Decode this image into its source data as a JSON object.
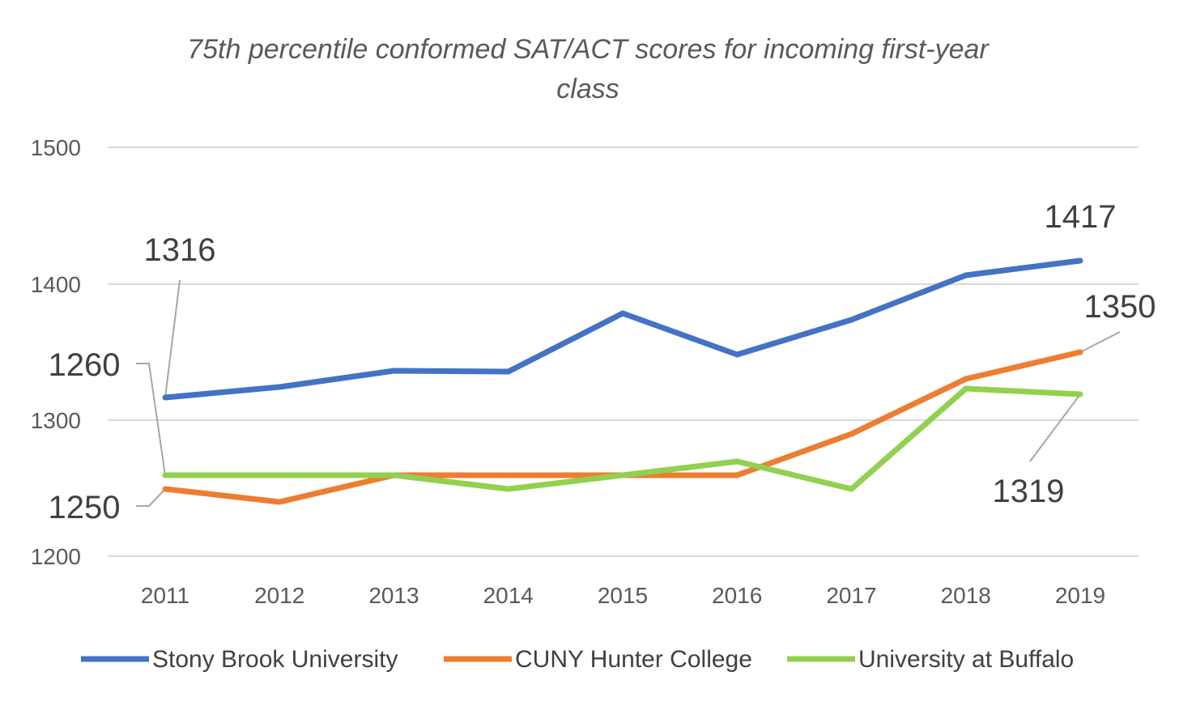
{
  "chart_data": {
    "type": "line",
    "title_line1": "75th percentile conformed SAT/ACT scores for incoming first-year",
    "title_line2": "class",
    "categories": [
      "2011",
      "2012",
      "2013",
      "2014",
      "2015",
      "2016",
      "2017",
      "2018",
      "2019"
    ],
    "y_tick_labels": [
      "1500",
      "1400",
      "1300",
      "1200"
    ],
    "series": [
      {
        "name": "Stony Brook University",
        "color": "#4472C4",
        "values": [
          1316,
          1324,
          1336,
          1335,
          1377,
          1346,
          1372,
          1406,
          1417
        ]
      },
      {
        "name": "CUNY Hunter College",
        "color": "#ED7D31",
        "values": [
          1250,
          1240,
          1260,
          1260,
          1260,
          1260,
          1290,
          1330,
          1350
        ]
      },
      {
        "name": "University at Buffalo",
        "color": "#92D050",
        "values": [
          1260,
          1260,
          1260,
          1250,
          1260,
          1270,
          1250,
          1323,
          1319
        ]
      }
    ],
    "data_labels": [
      {
        "series": 0,
        "point": 0,
        "text": "1316"
      },
      {
        "series": 0,
        "point": 8,
        "text": "1417"
      },
      {
        "series": 1,
        "point": 0,
        "text": "1250"
      },
      {
        "series": 1,
        "point": 8,
        "text": "1350"
      },
      {
        "series": 2,
        "point": 0,
        "text": "1260"
      },
      {
        "series": 2,
        "point": 8,
        "text": "1319"
      }
    ],
    "ylim": [
      1200,
      1500
    ],
    "grid": true,
    "legend_position": "bottom"
  }
}
